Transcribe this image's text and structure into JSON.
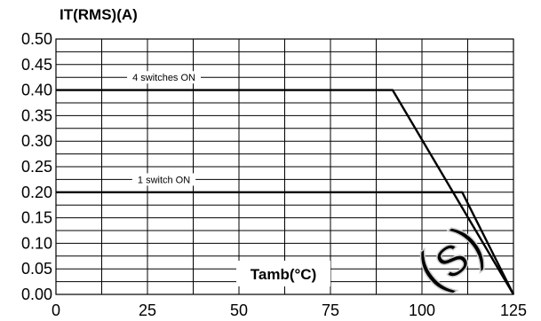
{
  "chart_data": {
    "type": "line",
    "ylabel": "IT(RMS)(A)",
    "xlabel": "Tamb(°C)",
    "xlim": [
      0,
      125
    ],
    "ylim": [
      0,
      0.5
    ],
    "x_ticks": [
      0,
      25,
      50,
      75,
      100,
      125
    ],
    "x_tick_labels": [
      "0",
      "25",
      "50",
      "75",
      "100",
      "125"
    ],
    "y_ticks": [
      0,
      0.05,
      0.1,
      0.15,
      0.2,
      0.25,
      0.3,
      0.35,
      0.4,
      0.45,
      0.5
    ],
    "y_tick_labels": [
      "0.00",
      "0.05",
      "0.10",
      "0.15",
      "0.20",
      "0.25",
      "0.30",
      "0.35",
      "0.40",
      "0.45",
      "0.50"
    ],
    "grid": true,
    "series": [
      {
        "name": "4 switches ON",
        "points": [
          [
            0,
            0.4
          ],
          [
            92,
            0.4
          ],
          [
            125,
            0.0
          ]
        ]
      },
      {
        "name": "1 switch ON",
        "points": [
          [
            0,
            0.2
          ],
          [
            111,
            0.2
          ],
          [
            125,
            0.0
          ]
        ]
      }
    ],
    "watermark": "(s)"
  }
}
